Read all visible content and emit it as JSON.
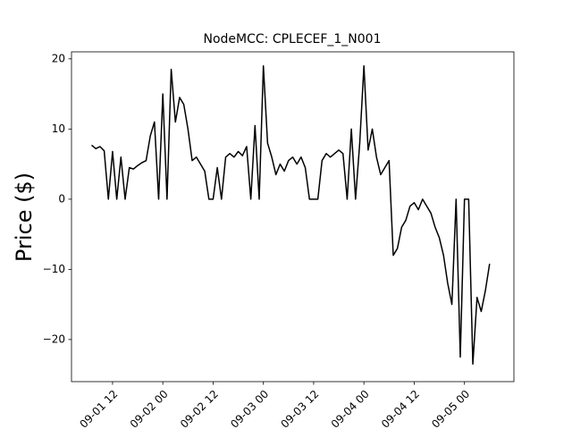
{
  "chart_data": {
    "type": "line",
    "title": "NodeMCC: CPLECEF_1_N001",
    "y_label": "Price ($)",
    "color": "#000000",
    "x": [
      "09-01 07",
      "09-01 08",
      "09-01 09",
      "09-01 10",
      "09-01 11",
      "09-01 12",
      "09-01 13",
      "09-01 14",
      "09-01 15",
      "09-01 16",
      "09-01 17",
      "09-01 18",
      "09-01 19",
      "09-01 20",
      "09-01 21",
      "09-01 22",
      "09-01 23",
      "09-02 00",
      "09-02 01",
      "09-02 02",
      "09-02 03",
      "09-02 04",
      "09-02 05",
      "09-02 06",
      "09-02 07",
      "09-02 08",
      "09-02 09",
      "09-02 10",
      "09-02 11",
      "09-02 12",
      "09-02 13",
      "09-02 14",
      "09-02 15",
      "09-02 16",
      "09-02 17",
      "09-02 18",
      "09-02 19",
      "09-02 20",
      "09-02 21",
      "09-02 22",
      "09-02 23",
      "09-03 00",
      "09-03 01",
      "09-03 02",
      "09-03 03",
      "09-03 04",
      "09-03 05",
      "09-03 06",
      "09-03 07",
      "09-03 08",
      "09-03 09",
      "09-03 10",
      "09-03 11",
      "09-03 12",
      "09-03 13",
      "09-03 14",
      "09-03 15",
      "09-03 16",
      "09-03 17",
      "09-03 18",
      "09-03 19",
      "09-03 20",
      "09-03 21",
      "09-03 22",
      "09-03 23",
      "09-04 00",
      "09-04 01",
      "09-04 02",
      "09-04 03",
      "09-04 04",
      "09-04 05",
      "09-04 06",
      "09-04 07",
      "09-04 08",
      "09-04 09",
      "09-04 10",
      "09-04 11",
      "09-04 12",
      "09-04 13",
      "09-04 14",
      "09-04 15",
      "09-04 16",
      "09-04 17",
      "09-04 18",
      "09-04 19",
      "09-04 20",
      "09-04 21",
      "09-04 22",
      "09-04 23",
      "09-05 00",
      "09-05 01",
      "09-05 02",
      "09-05 03",
      "09-05 04",
      "09-05 05",
      "09-05 06"
    ],
    "values": [
      7.7,
      7.2,
      7.5,
      6.9,
      0,
      6.8,
      0,
      6,
      0,
      4.5,
      4.3,
      4.8,
      5.2,
      5.5,
      9,
      11,
      0,
      15,
      0,
      18.5,
      11,
      14.5,
      13.5,
      10,
      5.5,
      6,
      5,
      4,
      0,
      0,
      4.5,
      0,
      6,
      6.5,
      6,
      6.8,
      6.2,
      7.5,
      0,
      10.5,
      0,
      19,
      8,
      6,
      3.5,
      5,
      4,
      5.5,
      6,
      5,
      6,
      4.5,
      0,
      0,
      0,
      5.5,
      6.5,
      6,
      6.5,
      7,
      6.5,
      0,
      10,
      0,
      8,
      19,
      7,
      10,
      6,
      3.5,
      4.5,
      5.5,
      -8,
      -7,
      -4,
      -3,
      -1,
      -0.5,
      -1.5,
      0,
      -1,
      -2,
      -4,
      -5.5,
      -8,
      -12,
      -15,
      0,
      -22.5,
      0,
      0,
      -23.5,
      -14,
      -16,
      -13,
      -9.2
    ],
    "xlim": [
      "09-01 02:12",
      "09-05 11:48"
    ],
    "xticks": [
      "09-01 12",
      "09-02 00",
      "09-02 12",
      "09-03 00",
      "09-03 12",
      "09-04 00",
      "09-04 12",
      "09-05 00"
    ],
    "ylim": [
      -26,
      21
    ],
    "yticks": [
      {
        "value": -20,
        "label": "−20"
      },
      {
        "value": -10,
        "label": "−10"
      },
      0,
      10,
      20
    ]
  }
}
